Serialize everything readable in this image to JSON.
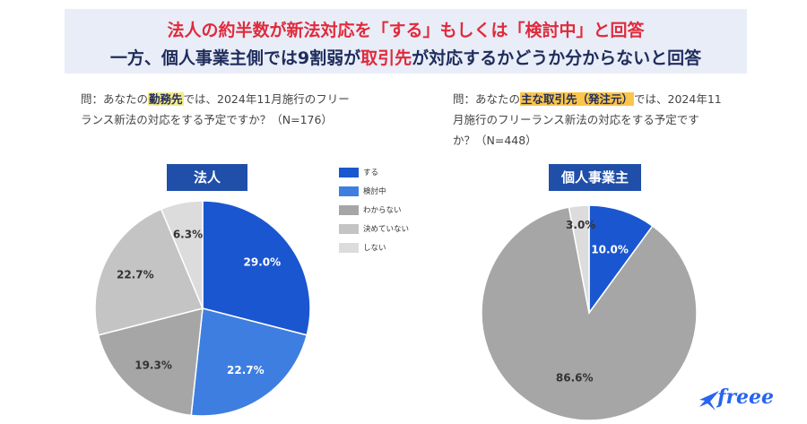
{
  "headline": {
    "line1_a": "法人の約半数が新法対応を「する」もしくは「検討中」と回答",
    "line2_a": "一方、個人事業主側では9割弱が",
    "line2_b": "取引先",
    "line2_c": "が対応するかどうか分からないと回答"
  },
  "questions": {
    "left_a": "問：あなたの",
    "left_hl": "勤務先",
    "left_b": "では、2024年11月施行のフリー",
    "left_c": "ランス新法の対応をする予定ですか？（N=176）",
    "right_a": "問：あなたの",
    "right_hl": "主な取引先（発注元）",
    "right_b": "では、2024年11",
    "right_c": "月施行のフリーランス新法の対応をする予定です",
    "right_d": "か？（N=448）"
  },
  "logo": {
    "text": "freee"
  },
  "colors": {
    "suru": "#1a56cf",
    "kentouchuu": "#3e7ee0",
    "wakaranai": "#a6a6a6",
    "kimeteinai": "#c4c4c4",
    "shinai": "#dcdcdc",
    "title_bg": "#1f4fa8"
  },
  "chart_data": [
    {
      "type": "pie",
      "title": "法人",
      "categories": [
        "する",
        "検討中",
        "わからない",
        "決めていない",
        "しない"
      ],
      "values": [
        29.0,
        22.7,
        19.3,
        22.7,
        6.3
      ],
      "labels": [
        "29.0%",
        "22.7%",
        "19.3%",
        "22.7%",
        "6.3%"
      ],
      "legend": "right"
    },
    {
      "type": "pie",
      "title": "個人事業主",
      "categories": [
        "する",
        "検討中",
        "わからない",
        "決めていない",
        "しない"
      ],
      "values": [
        10.0,
        0,
        86.6,
        0,
        3.0
      ],
      "labels": [
        "10.0%",
        "",
        "86.6%",
        "",
        "3.0%"
      ]
    }
  ]
}
